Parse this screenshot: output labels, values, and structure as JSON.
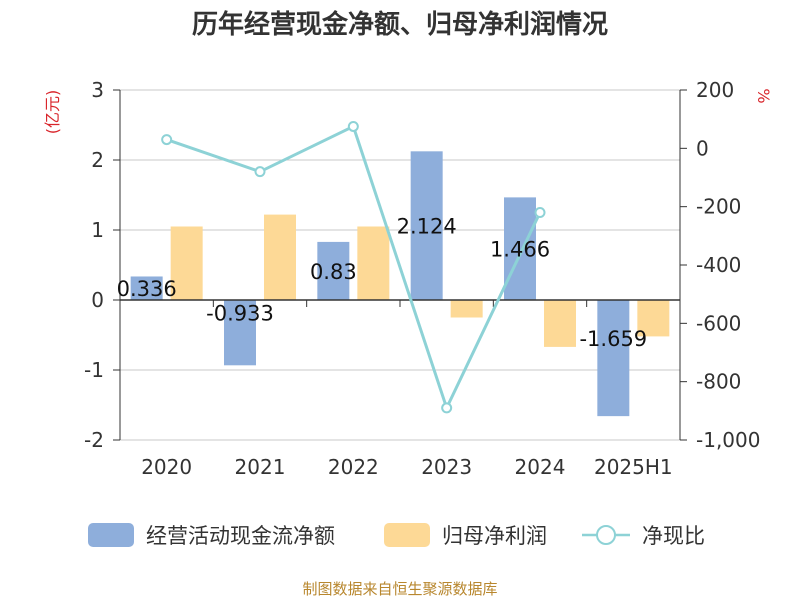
{
  "chart_data": {
    "type": "bar",
    "title": "历年经营现金净额、归母净利润情况",
    "categories": [
      "2020",
      "2021",
      "2022",
      "2023",
      "2024",
      "2025H1"
    ],
    "series": [
      {
        "name": "经营活动现金流净额",
        "type": "bar",
        "axis": "left",
        "color": "#8eaedb",
        "values": [
          0.336,
          -0.933,
          0.83,
          2.124,
          1.466,
          -1.659
        ],
        "labels": [
          "0.336",
          "-0.933",
          "0.83",
          "2.124",
          "1.466",
          "-1.659"
        ]
      },
      {
        "name": "归母净利润",
        "type": "bar",
        "axis": "left",
        "color": "#fdd996",
        "values": [
          1.05,
          1.22,
          1.05,
          -0.25,
          -0.67,
          -0.52
        ]
      },
      {
        "name": "净现比",
        "type": "line",
        "axis": "right",
        "color": "#8dd2d6",
        "values": [
          30,
          -80,
          75,
          -890,
          -220,
          null
        ]
      }
    ],
    "y_left": {
      "unit": "(亿元)",
      "min": -2,
      "max": 3,
      "ticks": [
        "3",
        "2",
        "1",
        "0",
        "-1",
        "-2"
      ]
    },
    "y_right": {
      "unit": "%",
      "min": -1000,
      "max": 200,
      "ticks": [
        "200",
        "0",
        "-200",
        "-400",
        "-600",
        "-800",
        "-1,000"
      ]
    },
    "grid": true,
    "legend_position": "bottom"
  },
  "source": "制图数据来自恒生聚源数据库"
}
